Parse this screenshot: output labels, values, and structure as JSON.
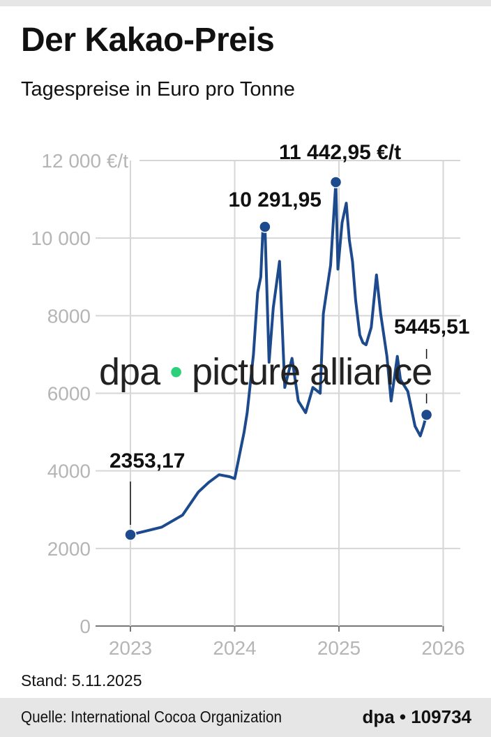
{
  "header": {
    "title": "Der Kakao-Preis",
    "subtitle": "Tagespreise in Euro pro Tonne"
  },
  "chart_data": {
    "type": "line",
    "title": "Der Kakao-Preis",
    "subtitle": "Tagespreise in Euro pro Tonne",
    "xlim": [
      2022.7,
      2026.2
    ],
    "ylim": [
      0,
      12000
    ],
    "grid": true,
    "x_ticks": [
      "2023",
      "2024",
      "2025",
      "2026"
    ],
    "x_tick_values": [
      2023,
      2024,
      2025,
      2026
    ],
    "y_ticks": [
      "0",
      "2000",
      "4000",
      "6000",
      "8000",
      "10 000",
      "12 000 €/t"
    ],
    "y_tick_values": [
      0,
      2000,
      4000,
      6000,
      8000,
      10000,
      12000
    ],
    "color": "#1d4a8c",
    "series": [
      {
        "x": [
          2023.0,
          2023.15,
          2023.3,
          2023.5,
          2023.65,
          2023.75,
          2023.85,
          2023.95,
          2024.0,
          2024.09,
          2024.12,
          2024.18,
          2024.22,
          2024.25,
          2024.27,
          2024.29,
          2024.33,
          2024.37,
          2024.43,
          2024.48,
          2024.55,
          2024.61,
          2024.68,
          2024.75,
          2024.82,
          2024.85,
          2024.88,
          2024.92,
          2024.97,
          2024.99,
          2025.03,
          2025.07,
          2025.1,
          2025.13,
          2025.16,
          2025.2,
          2025.23,
          2025.26,
          2025.31,
          2025.36,
          2025.4,
          2025.43,
          2025.46,
          2025.5,
          2025.56,
          2025.59,
          2025.66,
          2025.73,
          2025.78,
          2025.81,
          2025.84
        ],
        "y": [
          2353,
          2450,
          2550,
          2860,
          3450,
          3700,
          3900,
          3850,
          3800,
          5000,
          5500,
          7000,
          8600,
          9000,
          10200,
          10292,
          6800,
          8200,
          9400,
          6150,
          6900,
          5800,
          5500,
          6150,
          6000,
          8050,
          8600,
          9300,
          11443,
          9200,
          10400,
          10900,
          9950,
          9400,
          8400,
          7500,
          7300,
          7250,
          7700,
          9050,
          8050,
          7500,
          6950,
          5800,
          6950,
          6350,
          6050,
          5150,
          4900,
          5150,
          5446
        ]
      }
    ],
    "annotations": [
      {
        "label": "2353,17",
        "x": 2023.0,
        "y": 2353.17
      },
      {
        "label": "10 291,95",
        "x": 2024.29,
        "y": 10291.95
      },
      {
        "label": "11 442,95 €/t",
        "x": 2024.97,
        "y": 11442.95
      },
      {
        "label": "5445,51",
        "x": 2025.84,
        "y": 5445.51
      }
    ]
  },
  "watermark": {
    "left": "dpa",
    "dot": "•",
    "right": "picture alliance"
  },
  "footer": {
    "stand": "Stand: 5.11.2025",
    "source": "Quelle: International Cocoa Organization",
    "credit": "dpa • 109734"
  }
}
